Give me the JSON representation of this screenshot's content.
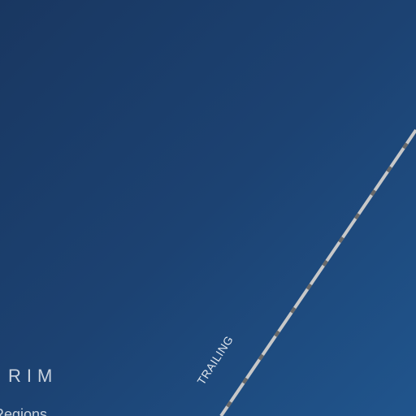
{
  "map": {
    "background_colors": [
      "#193761",
      "#20558d"
    ],
    "route_color": "#c8c8c8",
    "route_dash_color": "#6a6a6a",
    "labels": {
      "region_partial": "RIM",
      "regions_partial": "Regions",
      "route_partial": "TRAILING"
    }
  }
}
